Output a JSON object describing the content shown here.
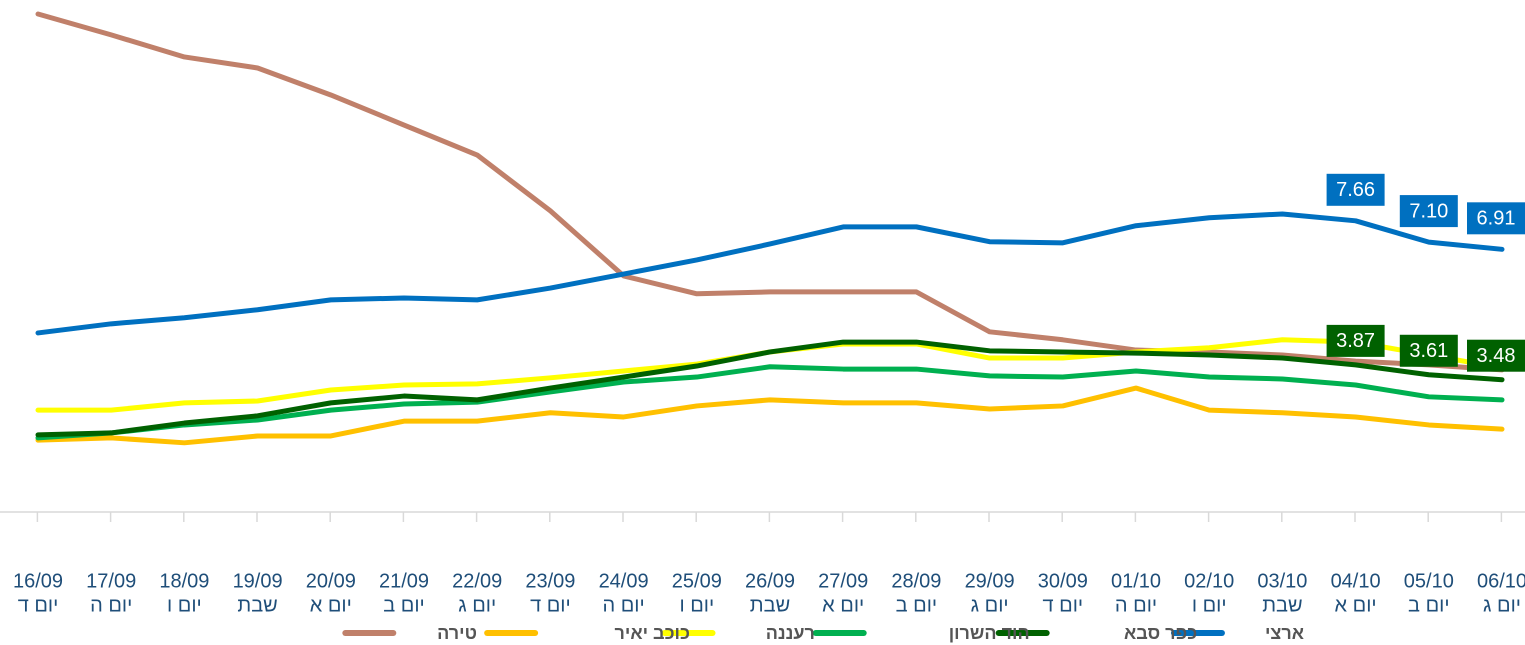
{
  "chart_data": {
    "type": "line",
    "categories": [
      "16/09",
      "17/09",
      "18/09",
      "19/09",
      "20/09",
      "21/09",
      "22/09",
      "23/09",
      "24/09",
      "25/09",
      "26/09",
      "27/09",
      "28/09",
      "29/09",
      "30/09",
      "01/10",
      "02/10",
      "03/10",
      "04/10",
      "05/10",
      "06/10"
    ],
    "days": [
      "יום ד",
      "יום ה",
      "יום ו",
      "שבת",
      "יום א",
      "יום ב",
      "יום ג",
      "יום ד",
      "יום ה",
      "יום ו",
      "שבת",
      "יום א",
      "יום ב",
      "יום ג",
      "יום ד",
      "יום ה",
      "יום ו",
      "שבת",
      "יום א",
      "יום ב",
      "יום ג"
    ],
    "series": [
      {
        "name": "ארצי",
        "color": "#0070c0",
        "values": [
          4.71,
          4.95,
          5.11,
          5.32,
          5.58,
          5.63,
          5.58,
          5.89,
          6.26,
          6.63,
          7.05,
          7.5,
          7.5,
          7.11,
          7.08,
          7.53,
          7.74,
          7.84,
          7.66,
          7.1,
          6.91
        ],
        "value_labels": [
          null,
          null,
          null,
          null,
          null,
          null,
          null,
          null,
          null,
          null,
          null,
          null,
          null,
          null,
          null,
          null,
          null,
          null,
          "7.66",
          "7.10",
          "6.91"
        ]
      },
      {
        "name": "כפר סבא",
        "color": "#006100",
        "values": [
          2.03,
          2.08,
          2.34,
          2.53,
          2.87,
          3.05,
          2.95,
          3.26,
          3.55,
          3.84,
          4.21,
          4.47,
          4.47,
          4.24,
          4.21,
          4.18,
          4.13,
          4.05,
          3.87,
          3.61,
          3.48
        ],
        "value_labels": [
          null,
          null,
          null,
          null,
          null,
          null,
          null,
          null,
          null,
          null,
          null,
          null,
          null,
          null,
          null,
          null,
          null,
          null,
          "3.87",
          "3.61",
          "3.48"
        ]
      },
      {
        "name": "הוד השרון",
        "color": "#00b050",
        "values": [
          1.95,
          2.08,
          2.29,
          2.42,
          2.68,
          2.84,
          2.89,
          3.16,
          3.42,
          3.55,
          3.82,
          3.76,
          3.76,
          3.58,
          3.55,
          3.71,
          3.55,
          3.5,
          3.34,
          3.03,
          2.95
        ]
      },
      {
        "name": "רעננה",
        "color": "#ffff00",
        "values": [
          2.68,
          2.68,
          2.87,
          2.92,
          3.21,
          3.34,
          3.37,
          3.53,
          3.71,
          3.89,
          4.21,
          4.42,
          4.42,
          4.05,
          4.05,
          4.21,
          4.32,
          4.53,
          4.47,
          4.13,
          3.79
        ]
      },
      {
        "name": "כוכב יאיר",
        "color": "#ffc000",
        "values": [
          1.89,
          1.95,
          1.82,
          2.0,
          2.0,
          2.39,
          2.39,
          2.61,
          2.5,
          2.79,
          2.95,
          2.87,
          2.87,
          2.71,
          2.79,
          3.26,
          2.68,
          2.61,
          2.5,
          2.29,
          2.18
        ]
      },
      {
        "name": "טירה",
        "color": "#c0806a",
        "values": [
          13.1,
          12.55,
          11.97,
          11.68,
          10.97,
          10.18,
          9.39,
          7.92,
          6.21,
          5.74,
          5.79,
          5.79,
          5.79,
          4.74,
          4.53,
          4.26,
          4.21,
          4.13,
          3.97,
          3.87,
          3.74
        ]
      }
    ]
  }
}
